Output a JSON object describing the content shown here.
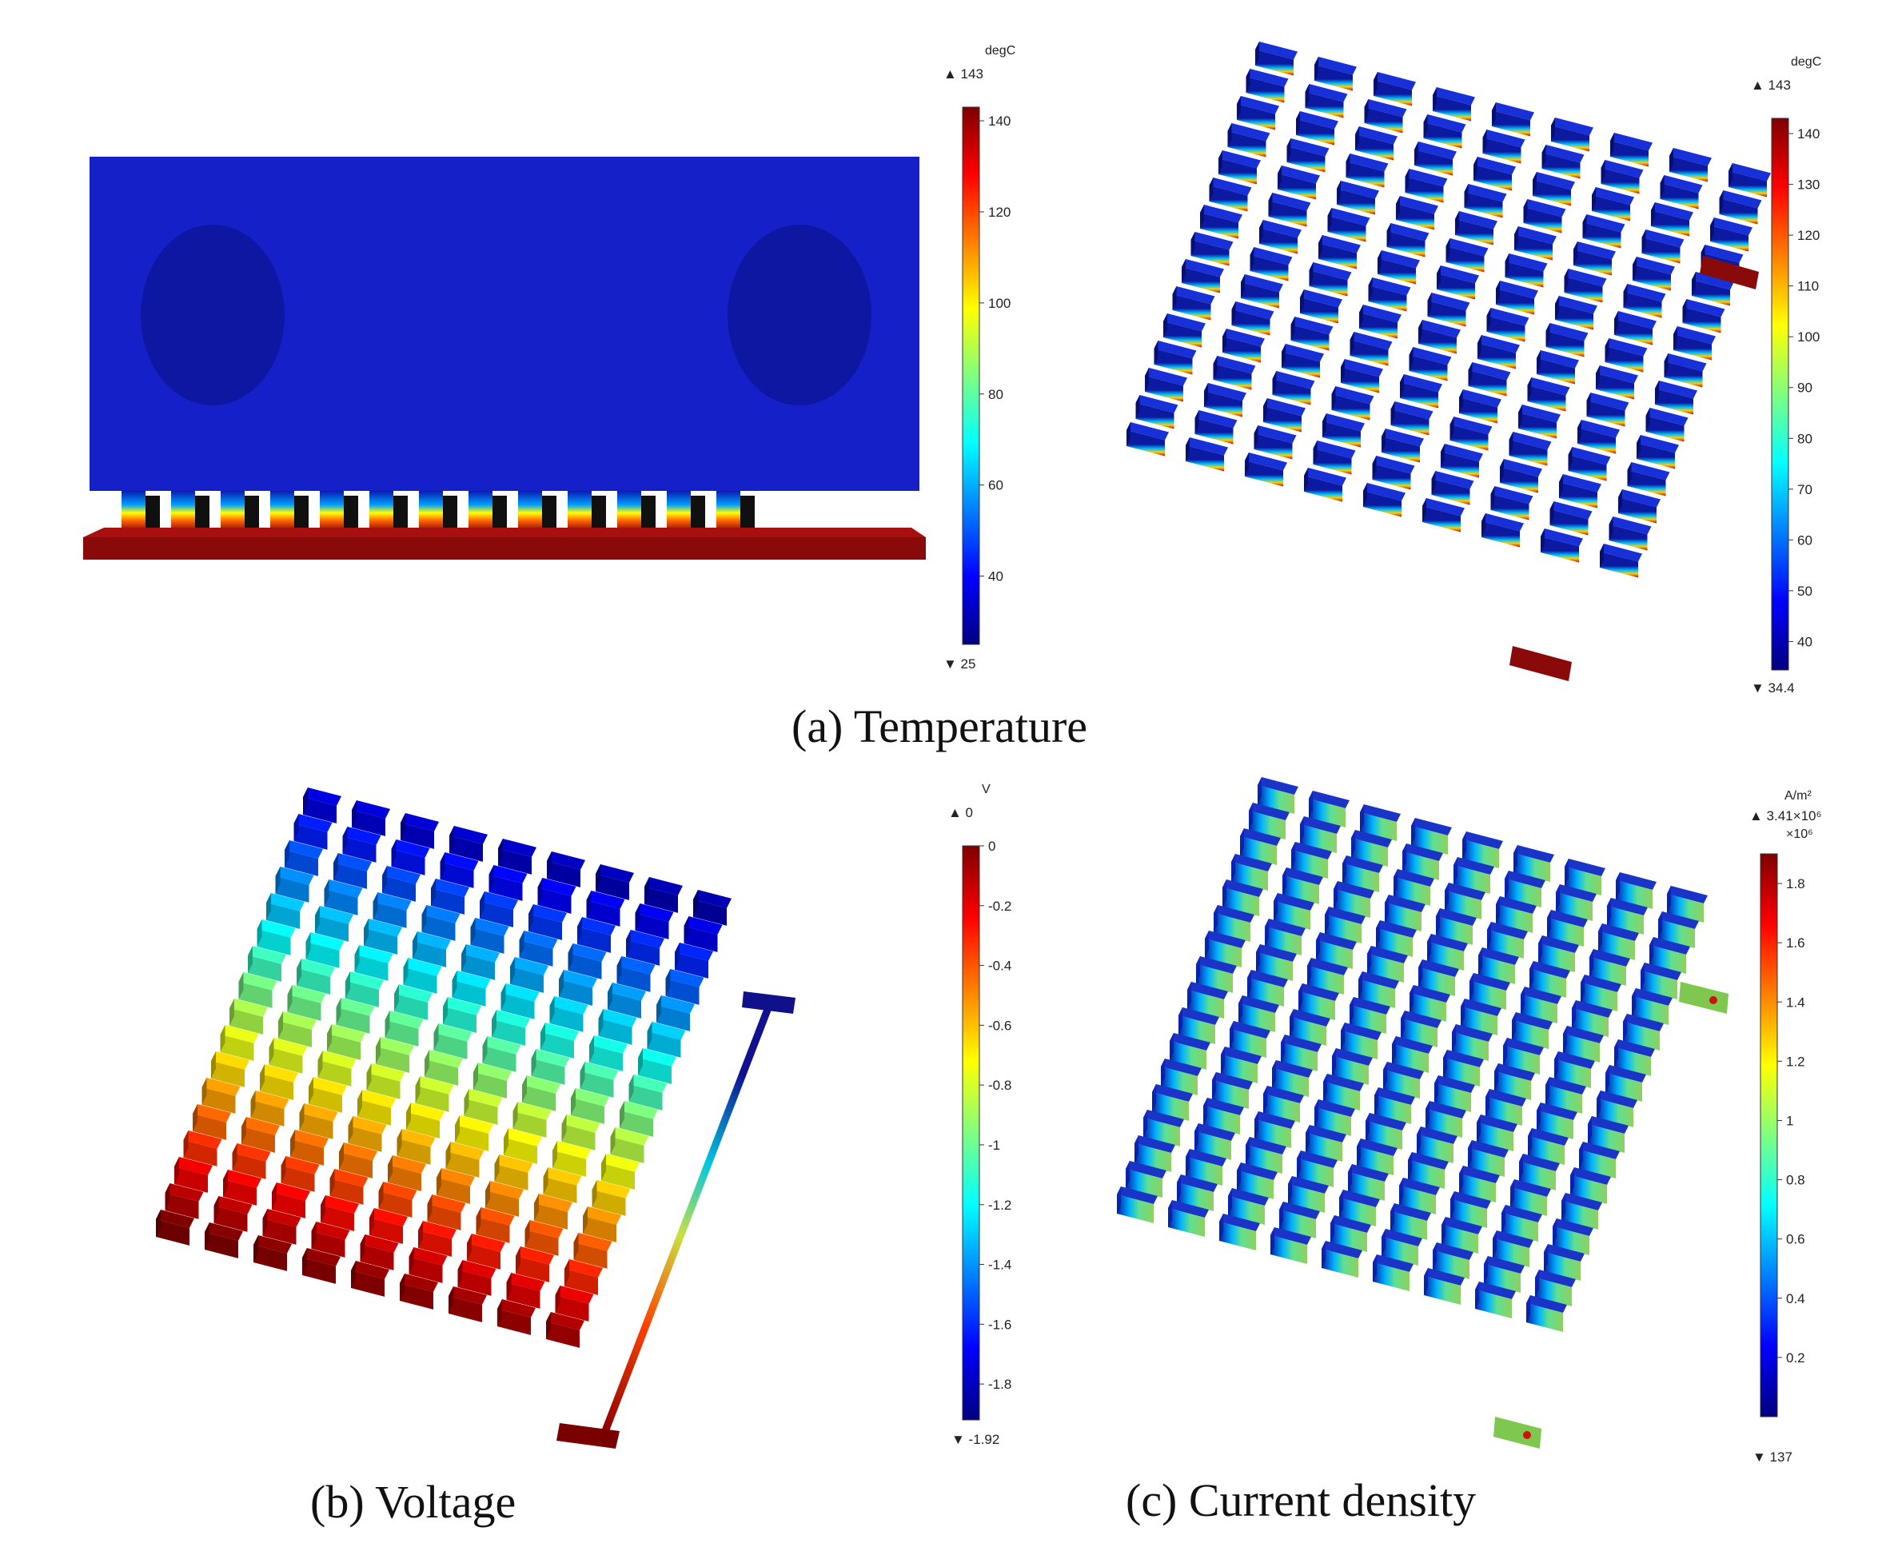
{
  "colors": {
    "jet": [
      "#00007f",
      "#0000ff",
      "#007fff",
      "#00ffff",
      "#7fff7f",
      "#ffff00",
      "#ff7f00",
      "#ff0000",
      "#7f0000"
    ],
    "housing_blue": "#1620c8",
    "circle_blue": "#0d17a2",
    "base_red": "#8a0a0a",
    "block_face": "#0b1aa0",
    "block_top": "#1830d8",
    "block_side": "#061070"
  },
  "panels": {
    "a": {
      "caption": "(a)  Temperature",
      "left_scale": {
        "unit": "degC",
        "max_label": "▲ 143",
        "min_label": "▼ 25",
        "min": 25,
        "max": 143,
        "ticks": [
          {
            "value": 140,
            "label": "140"
          },
          {
            "value": 120,
            "label": "120"
          },
          {
            "value": 100,
            "label": "100"
          },
          {
            "value": 80,
            "label": "80"
          },
          {
            "value": 60,
            "label": "60"
          },
          {
            "value": 40,
            "label": "40"
          }
        ]
      },
      "right_scale": {
        "unit": "degC",
        "max_label": "▲ 143",
        "min_label": "▼ 34.4",
        "min": 34.4,
        "max": 143,
        "ticks": [
          {
            "value": 140,
            "label": "140"
          },
          {
            "value": 130,
            "label": "130"
          },
          {
            "value": 120,
            "label": "120"
          },
          {
            "value": 110,
            "label": "110"
          },
          {
            "value": 100,
            "label": "100"
          },
          {
            "value": 90,
            "label": "90"
          },
          {
            "value": 80,
            "label": "80"
          },
          {
            "value": 70,
            "label": "70"
          },
          {
            "value": 60,
            "label": "60"
          },
          {
            "value": 50,
            "label": "50"
          },
          {
            "value": 40,
            "label": "40"
          }
        ]
      }
    },
    "b": {
      "caption": "(b) Voltage",
      "scale": {
        "unit": "V",
        "max_label": "▲ 0",
        "min_label": "▼ -1.92",
        "min": -1.92,
        "max": 0,
        "ticks": [
          {
            "value": 0,
            "label": "0"
          },
          {
            "value": -0.2,
            "label": "-0.2"
          },
          {
            "value": -0.4,
            "label": "-0.4"
          },
          {
            "value": -0.6,
            "label": "-0.6"
          },
          {
            "value": -0.8,
            "label": "-0.8"
          },
          {
            "value": -1,
            "label": "-1"
          },
          {
            "value": -1.2,
            "label": "-1.2"
          },
          {
            "value": -1.4,
            "label": "-1.4"
          },
          {
            "value": -1.6,
            "label": "-1.6"
          },
          {
            "value": -1.8,
            "label": "-1.8"
          }
        ]
      }
    },
    "c": {
      "caption": "(c) Current density",
      "scale": {
        "unit": "A/m²",
        "max_label": "▲ 3.41×10⁶",
        "multiplier": "×10⁶",
        "min_label": "▼ 137",
        "min": 0,
        "max": 1.9,
        "ticks": [
          {
            "value": 1.8,
            "label": "1.8"
          },
          {
            "value": 1.6,
            "label": "1.6"
          },
          {
            "value": 1.4,
            "label": "1.4"
          },
          {
            "value": 1.2,
            "label": "1.2"
          },
          {
            "value": 1,
            "label": "1"
          },
          {
            "value": 0.8,
            "label": "0.8"
          },
          {
            "value": 0.6,
            "label": "0.6"
          },
          {
            "value": 0.4,
            "label": "0.4"
          },
          {
            "value": 0.2,
            "label": "0.2"
          }
        ]
      }
    }
  }
}
